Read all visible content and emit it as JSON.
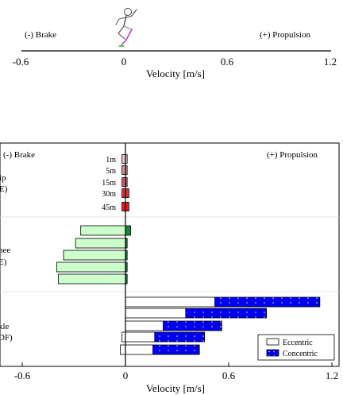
{
  "top_panel": {
    "brake_label": "(-)  Brake",
    "propulsion_label": "(+)  Propulsion",
    "xlabel": "Velocity [m/s]",
    "ticks": [
      "-0.6",
      "0",
      "0.6",
      "1.2"
    ],
    "tick_values": [
      -0.6,
      0,
      0.6,
      1.2
    ]
  },
  "chart_data": {
    "type": "bar",
    "orientation": "horizontal",
    "title": "",
    "xlabel": "Velocity [m/s]",
    "xlim": [
      -0.6,
      1.2
    ],
    "x_ticks": [
      "-0.6",
      "0",
      "0.6",
      "1.2"
    ],
    "x_tick_values": [
      -0.6,
      0,
      0.6,
      1.2
    ],
    "corner_labels": {
      "brake": "(-)  Brake",
      "propulsion": "(+)  Propulsion"
    },
    "legend": {
      "placement": "bottom-right",
      "entries": [
        "Eccentric",
        "Concentric"
      ]
    },
    "group_labels": [
      {
        "line1": "ip",
        "line2": "E)"
      },
      {
        "line1": "nee",
        "line2": "E)"
      },
      {
        "line1": "kle",
        "line2": "DF)"
      }
    ],
    "hip": {
      "categories": [
        "1m",
        "5m",
        "15m",
        "30m",
        "45m"
      ],
      "eccentric": [
        [
          -0.02,
          0.0
        ],
        [
          -0.02,
          0.0
        ],
        [
          -0.02,
          0.0
        ],
        [
          -0.02,
          0.0
        ],
        [
          -0.02,
          0.0
        ]
      ],
      "concentric": [
        [
          0.0,
          0.01
        ],
        [
          0.0,
          0.01
        ],
        [
          0.0,
          0.01
        ],
        [
          0.0,
          0.02
        ],
        [
          0.0,
          0.02
        ]
      ],
      "colors": [
        "#e9c4cf",
        "#dc8a98",
        "#d9586a",
        "#d83338",
        "#ec1c1c"
      ]
    },
    "knee": {
      "eccentric": [
        [
          -0.26,
          0.0
        ],
        [
          -0.29,
          0.0
        ],
        [
          -0.36,
          0.0
        ],
        [
          -0.4,
          0.0
        ],
        [
          -0.39,
          0.0
        ]
      ],
      "concentric": [
        [
          0.0,
          0.03
        ],
        [
          0.0,
          0.01
        ],
        [
          0.0,
          0.01
        ],
        [
          0.0,
          0.01
        ],
        [
          0.0,
          0.01
        ]
      ],
      "ecc_color": "#ccffcc",
      "con_color": "#138a3a"
    },
    "ankle": {
      "eccentric": [
        [
          0.0,
          0.52
        ],
        [
          0.0,
          0.35
        ],
        [
          0.0,
          0.22
        ],
        [
          -0.02,
          0.17
        ],
        [
          -0.03,
          0.16
        ]
      ],
      "concentric": [
        [
          0.52,
          1.13
        ],
        [
          0.35,
          0.82
        ],
        [
          0.22,
          0.56
        ],
        [
          0.17,
          0.46
        ],
        [
          0.16,
          0.43
        ]
      ],
      "ecc_color": "#ffffff",
      "con_color": "#0000ee"
    }
  }
}
